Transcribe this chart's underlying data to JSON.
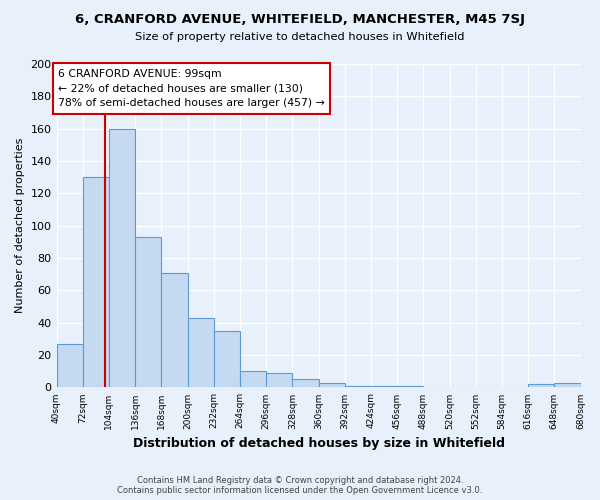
{
  "title": "6, CRANFORD AVENUE, WHITEFIELD, MANCHESTER, M45 7SJ",
  "subtitle": "Size of property relative to detached houses in Whitefield",
  "xlabel": "Distribution of detached houses by size in Whitefield",
  "ylabel": "Number of detached properties",
  "bar_values": [
    27,
    130,
    160,
    93,
    71,
    43,
    35,
    10,
    9,
    5,
    3,
    1,
    1,
    1,
    0,
    0,
    0,
    0,
    2,
    3
  ],
  "bar_labels": [
    "40sqm",
    "72sqm",
    "104sqm",
    "136sqm",
    "168sqm",
    "200sqm",
    "232sqm",
    "264sqm",
    "296sqm",
    "328sqm",
    "360sqm",
    "392sqm",
    "424sqm",
    "456sqm",
    "488sqm",
    "520sqm",
    "552sqm",
    "584sqm",
    "616sqm",
    "648sqm",
    "680sqm"
  ],
  "bin_starts": [
    40,
    72,
    104,
    136,
    168,
    200,
    232,
    264,
    296,
    328,
    360,
    392,
    424,
    456,
    488,
    520,
    552,
    584,
    616,
    648
  ],
  "bin_width": 32,
  "bar_color": "#c5d9f1",
  "bar_edge_color": "#5b9bd5",
  "vline_x": 99,
  "vline_color": "#cc0000",
  "annotation_title": "6 CRANFORD AVENUE: 99sqm",
  "annotation_line1": "← 22% of detached houses are smaller (130)",
  "annotation_line2": "78% of semi-detached houses are larger (457) →",
  "annotation_box_facecolor": "#ffffff",
  "annotation_box_edgecolor": "#cc0000",
  "ylim": [
    0,
    200
  ],
  "yticks": [
    0,
    20,
    40,
    60,
    80,
    100,
    120,
    140,
    160,
    180,
    200
  ],
  "bg_color": "#e8f0fb",
  "plot_bg_color": "#e8f0fb",
  "grid_color": "#ffffff",
  "footer_line1": "Contains HM Land Registry data © Crown copyright and database right 2024.",
  "footer_line2": "Contains public sector information licensed under the Open Government Licence v3.0."
}
